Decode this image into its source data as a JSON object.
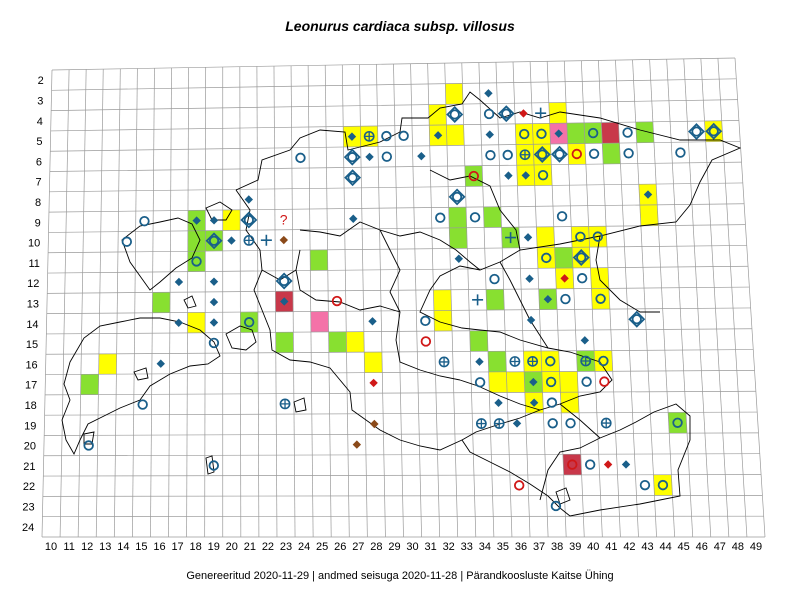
{
  "title": "Leonurus cardiaca subsp. villosus",
  "footer": {
    "generated": "Genereeritud 2020-11-29",
    "data_state": "andmed seisuga 2020-11-28",
    "org": "Pärandkoosluste Kaitse Ühing",
    "separator": "|"
  },
  "grid": {
    "rows": [
      "2",
      "3",
      "4",
      "5",
      "6",
      "7",
      "8",
      "9",
      "10",
      "11",
      "12",
      "13",
      "14",
      "15",
      "16",
      "17",
      "18",
      "19",
      "20",
      "21",
      "22",
      "23",
      "24"
    ],
    "cols": [
      "10",
      "11",
      "12",
      "13",
      "14",
      "15",
      "16",
      "17",
      "18",
      "19",
      "20",
      "21",
      "22",
      "23",
      "24",
      "25",
      "26",
      "27",
      "28",
      "29",
      "30",
      "31",
      "32",
      "33",
      "34",
      "35",
      "36",
      "37",
      "38",
      "39",
      "40",
      "41",
      "42",
      "43",
      "44",
      "45",
      "46",
      "47",
      "48",
      "49"
    ]
  },
  "colors": {
    "yellow": "#ffff00",
    "green": "#88e030",
    "red": "#c8384a",
    "pink": "#f472a8",
    "blue": "#1a5f8a",
    "red_mark": "#d01818",
    "brown": "#8b4a1a",
    "grid": "#9a9a9a",
    "border": "#000000"
  },
  "cells": [
    {
      "c": "33",
      "r": "3",
      "f": "yellow"
    },
    {
      "c": "32",
      "r": "4",
      "f": "yellow"
    },
    {
      "c": "39",
      "r": "4",
      "f": "yellow"
    },
    {
      "c": "27",
      "r": "5",
      "f": "yellow"
    },
    {
      "c": "28",
      "r": "5",
      "f": "yellow"
    },
    {
      "c": "32",
      "r": "5",
      "f": "yellow"
    },
    {
      "c": "33",
      "r": "5",
      "f": "yellow"
    },
    {
      "c": "37",
      "r": "5",
      "f": "yellow"
    },
    {
      "c": "38",
      "r": "5",
      "f": "yellow"
    },
    {
      "c": "39",
      "r": "5",
      "f": "pink"
    },
    {
      "c": "40",
      "r": "5",
      "f": "green"
    },
    {
      "c": "41",
      "r": "5",
      "f": "green"
    },
    {
      "c": "42",
      "r": "5",
      "f": "red"
    },
    {
      "c": "44",
      "r": "5",
      "f": "green"
    },
    {
      "c": "48",
      "r": "5",
      "f": "yellow"
    },
    {
      "c": "37",
      "r": "6",
      "f": "yellow"
    },
    {
      "c": "38",
      "r": "6",
      "f": "yellow"
    },
    {
      "c": "40",
      "r": "6",
      "f": "yellow"
    },
    {
      "c": "42",
      "r": "6",
      "f": "green"
    },
    {
      "c": "34",
      "r": "7",
      "f": "green"
    },
    {
      "c": "37",
      "r": "7",
      "f": "yellow"
    },
    {
      "c": "38",
      "r": "7",
      "f": "yellow"
    },
    {
      "c": "44",
      "r": "8",
      "f": "yellow"
    },
    {
      "c": "44",
      "r": "9",
      "f": "yellow"
    },
    {
      "c": "18",
      "r": "9",
      "f": "green"
    },
    {
      "c": "20",
      "r": "9",
      "f": "yellow"
    },
    {
      "c": "33",
      "r": "9",
      "f": "green"
    },
    {
      "c": "35",
      "r": "9",
      "f": "green"
    },
    {
      "c": "18",
      "r": "10",
      "f": "green"
    },
    {
      "c": "19",
      "r": "10",
      "f": "green"
    },
    {
      "c": "33",
      "r": "10",
      "f": "green"
    },
    {
      "c": "36",
      "r": "10",
      "f": "green"
    },
    {
      "c": "38",
      "r": "10",
      "f": "yellow"
    },
    {
      "c": "40",
      "r": "10",
      "f": "yellow"
    },
    {
      "c": "41",
      "r": "10",
      "f": "yellow"
    },
    {
      "c": "18",
      "r": "11",
      "f": "green"
    },
    {
      "c": "25",
      "r": "11",
      "f": "green"
    },
    {
      "c": "38",
      "r": "11",
      "f": "yellow"
    },
    {
      "c": "39",
      "r": "11",
      "f": "green"
    },
    {
      "c": "40",
      "r": "11",
      "f": "yellow"
    },
    {
      "c": "39",
      "r": "12",
      "f": "yellow"
    },
    {
      "c": "41",
      "r": "12",
      "f": "yellow"
    },
    {
      "c": "16",
      "r": "13",
      "f": "green"
    },
    {
      "c": "23",
      "r": "13",
      "f": "red"
    },
    {
      "c": "32",
      "r": "13",
      "f": "yellow"
    },
    {
      "c": "35",
      "r": "13",
      "f": "green"
    },
    {
      "c": "38",
      "r": "13",
      "f": "green"
    },
    {
      "c": "41",
      "r": "13",
      "f": "yellow"
    },
    {
      "c": "18",
      "r": "14",
      "f": "yellow"
    },
    {
      "c": "21",
      "r": "14",
      "f": "green"
    },
    {
      "c": "25",
      "r": "14",
      "f": "pink"
    },
    {
      "c": "32",
      "r": "14",
      "f": "yellow"
    },
    {
      "c": "23",
      "r": "15",
      "f": "green"
    },
    {
      "c": "26",
      "r": "15",
      "f": "green"
    },
    {
      "c": "27",
      "r": "15",
      "f": "yellow"
    },
    {
      "c": "34",
      "r": "15",
      "f": "green"
    },
    {
      "c": "13",
      "r": "16",
      "f": "yellow"
    },
    {
      "c": "28",
      "r": "16",
      "f": "yellow"
    },
    {
      "c": "35",
      "r": "16",
      "f": "green"
    },
    {
      "c": "37",
      "r": "16",
      "f": "yellow"
    },
    {
      "c": "38",
      "r": "16",
      "f": "yellow"
    },
    {
      "c": "40",
      "r": "16",
      "f": "green"
    },
    {
      "c": "41",
      "r": "16",
      "f": "yellow"
    },
    {
      "c": "12",
      "r": "17",
      "f": "green"
    },
    {
      "c": "35",
      "r": "17",
      "f": "yellow"
    },
    {
      "c": "36",
      "r": "17",
      "f": "yellow"
    },
    {
      "c": "37",
      "r": "17",
      "f": "green"
    },
    {
      "c": "38",
      "r": "17",
      "f": "yellow"
    },
    {
      "c": "39",
      "r": "17",
      "f": "yellow"
    },
    {
      "c": "37",
      "r": "18",
      "f": "yellow"
    },
    {
      "c": "39",
      "r": "18",
      "f": "yellow"
    },
    {
      "c": "45",
      "r": "19",
      "f": "green"
    },
    {
      "c": "39",
      "r": "21",
      "f": "red"
    },
    {
      "c": "44",
      "r": "22",
      "f": "yellow"
    }
  ],
  "marks": [
    {
      "c": "35",
      "r": "3",
      "t": "diamond"
    },
    {
      "c": "33",
      "r": "4",
      "t": "circle-diamond"
    },
    {
      "c": "35",
      "r": "4",
      "t": "circle"
    },
    {
      "c": "36",
      "r": "4",
      "t": "circle-diamond"
    },
    {
      "c": "37",
      "r": "4",
      "t": "red-diamond"
    },
    {
      "c": "38",
      "r": "4",
      "t": "plus"
    },
    {
      "c": "27",
      "r": "5",
      "t": "diamond"
    },
    {
      "c": "28",
      "r": "5",
      "t": "circle-cross"
    },
    {
      "c": "29",
      "r": "5",
      "t": "circle"
    },
    {
      "c": "30",
      "r": "5",
      "t": "circle"
    },
    {
      "c": "32",
      "r": "5",
      "t": "diamond"
    },
    {
      "c": "35",
      "r": "5",
      "t": "diamond"
    },
    {
      "c": "37",
      "r": "5",
      "t": "circle"
    },
    {
      "c": "38",
      "r": "5",
      "t": "circle"
    },
    {
      "c": "39",
      "r": "5",
      "t": "diamond"
    },
    {
      "c": "41",
      "r": "5",
      "t": "circle"
    },
    {
      "c": "43",
      "r": "5",
      "t": "circle"
    },
    {
      "c": "47",
      "r": "5",
      "t": "circle-diamond"
    },
    {
      "c": "48",
      "r": "5",
      "t": "circle-diamond"
    },
    {
      "c": "24",
      "r": "6",
      "t": "circle"
    },
    {
      "c": "27",
      "r": "6",
      "t": "circle-diamond"
    },
    {
      "c": "28",
      "r": "6",
      "t": "diamond"
    },
    {
      "c": "29",
      "r": "6",
      "t": "circle"
    },
    {
      "c": "31",
      "r": "6",
      "t": "diamond"
    },
    {
      "c": "35",
      "r": "6",
      "t": "circle"
    },
    {
      "c": "36",
      "r": "6",
      "t": "circle"
    },
    {
      "c": "37",
      "r": "6",
      "t": "circle-cross"
    },
    {
      "c": "38",
      "r": "6",
      "t": "circle-diamond"
    },
    {
      "c": "39",
      "r": "6",
      "t": "circle-diamond"
    },
    {
      "c": "40",
      "r": "6",
      "t": "red-circle"
    },
    {
      "c": "41",
      "r": "6",
      "t": "circle"
    },
    {
      "c": "43",
      "r": "6",
      "t": "circle"
    },
    {
      "c": "46",
      "r": "6",
      "t": "circle"
    },
    {
      "c": "27",
      "r": "7",
      "t": "circle-diamond"
    },
    {
      "c": "34",
      "r": "7",
      "t": "red-circle"
    },
    {
      "c": "36",
      "r": "7",
      "t": "diamond"
    },
    {
      "c": "37",
      "r": "7",
      "t": "diamond"
    },
    {
      "c": "38",
      "r": "7",
      "t": "circle"
    },
    {
      "c": "44",
      "r": "8",
      "t": "diamond"
    },
    {
      "c": "21",
      "r": "8",
      "t": "diamond"
    },
    {
      "c": "33",
      "r": "8",
      "t": "circle-diamond"
    },
    {
      "c": "15",
      "r": "9",
      "t": "circle"
    },
    {
      "c": "18",
      "r": "9",
      "t": "diamond"
    },
    {
      "c": "19",
      "r": "9",
      "t": "diamond"
    },
    {
      "c": "21",
      "r": "9",
      "t": "circle-diamond"
    },
    {
      "c": "23",
      "r": "9",
      "t": "question"
    },
    {
      "c": "27",
      "r": "9",
      "t": "diamond"
    },
    {
      "c": "32",
      "r": "9",
      "t": "circle"
    },
    {
      "c": "34",
      "r": "9",
      "t": "circle"
    },
    {
      "c": "39",
      "r": "9",
      "t": "circle"
    },
    {
      "c": "14",
      "r": "10",
      "t": "circle"
    },
    {
      "c": "19",
      "r": "10",
      "t": "circle-diamond"
    },
    {
      "c": "20",
      "r": "10",
      "t": "diamond"
    },
    {
      "c": "21",
      "r": "10",
      "t": "circle-cross"
    },
    {
      "c": "22",
      "r": "10",
      "t": "plus"
    },
    {
      "c": "23",
      "r": "10",
      "t": "brown-diamond"
    },
    {
      "c": "36",
      "r": "10",
      "t": "plus"
    },
    {
      "c": "37",
      "r": "10",
      "t": "diamond"
    },
    {
      "c": "40",
      "r": "10",
      "t": "circle"
    },
    {
      "c": "41",
      "r": "10",
      "t": "circle"
    },
    {
      "c": "18",
      "r": "11",
      "t": "circle"
    },
    {
      "c": "33",
      "r": "11",
      "t": "diamond"
    },
    {
      "c": "38",
      "r": "11",
      "t": "circle"
    },
    {
      "c": "40",
      "r": "11",
      "t": "circle-diamond"
    },
    {
      "c": "17",
      "r": "12",
      "t": "diamond"
    },
    {
      "c": "19",
      "r": "12",
      "t": "diamond"
    },
    {
      "c": "23",
      "r": "12",
      "t": "circle-diamond"
    },
    {
      "c": "35",
      "r": "12",
      "t": "circle"
    },
    {
      "c": "37",
      "r": "12",
      "t": "diamond"
    },
    {
      "c": "39",
      "r": "12",
      "t": "red-diamond"
    },
    {
      "c": "40",
      "r": "12",
      "t": "circle"
    },
    {
      "c": "19",
      "r": "13",
      "t": "diamond"
    },
    {
      "c": "23",
      "r": "13",
      "t": "diamond"
    },
    {
      "c": "26",
      "r": "13",
      "t": "red-circle"
    },
    {
      "c": "34",
      "r": "13",
      "t": "plus"
    },
    {
      "c": "38",
      "r": "13",
      "t": "diamond"
    },
    {
      "c": "39",
      "r": "13",
      "t": "circle"
    },
    {
      "c": "41",
      "r": "13",
      "t": "circle"
    },
    {
      "c": "17",
      "r": "14",
      "t": "diamond"
    },
    {
      "c": "19",
      "r": "14",
      "t": "diamond"
    },
    {
      "c": "21",
      "r": "14",
      "t": "circle"
    },
    {
      "c": "28",
      "r": "14",
      "t": "diamond"
    },
    {
      "c": "31",
      "r": "14",
      "t": "circle"
    },
    {
      "c": "37",
      "r": "14",
      "t": "diamond"
    },
    {
      "c": "43",
      "r": "14",
      "t": "circle-diamond"
    },
    {
      "c": "19",
      "r": "15",
      "t": "circle"
    },
    {
      "c": "31",
      "r": "15",
      "t": "red-circle"
    },
    {
      "c": "40",
      "r": "15",
      "t": "diamond"
    },
    {
      "c": "16",
      "r": "16",
      "t": "diamond"
    },
    {
      "c": "32",
      "r": "16",
      "t": "circle-cross"
    },
    {
      "c": "34",
      "r": "16",
      "t": "diamond"
    },
    {
      "c": "36",
      "r": "16",
      "t": "circle-cross"
    },
    {
      "c": "37",
      "r": "16",
      "t": "circle-cross"
    },
    {
      "c": "38",
      "r": "16",
      "t": "circle"
    },
    {
      "c": "40",
      "r": "16",
      "t": "circle-cross"
    },
    {
      "c": "41",
      "r": "16",
      "t": "circle"
    },
    {
      "c": "28",
      "r": "17",
      "t": "red-diamond"
    },
    {
      "c": "34",
      "r": "17",
      "t": "circle"
    },
    {
      "c": "37",
      "r": "17",
      "t": "diamond"
    },
    {
      "c": "38",
      "r": "17",
      "t": "circle"
    },
    {
      "c": "40",
      "r": "17",
      "t": "circle"
    },
    {
      "c": "41",
      "r": "17",
      "t": "red-circle"
    },
    {
      "c": "15",
      "r": "18",
      "t": "circle"
    },
    {
      "c": "23",
      "r": "18",
      "t": "circle-cross"
    },
    {
      "c": "35",
      "r": "18",
      "t": "diamond"
    },
    {
      "c": "37",
      "r": "18",
      "t": "diamond"
    },
    {
      "c": "38",
      "r": "18",
      "t": "circle"
    },
    {
      "c": "35",
      "r": "19",
      "t": "circle-cross"
    },
    {
      "c": "36",
      "r": "19",
      "t": "diamond"
    },
    {
      "c": "28",
      "r": "19",
      "t": "brown-diamond"
    },
    {
      "c": "34",
      "r": "19",
      "t": "circle-cross"
    },
    {
      "c": "38",
      "r": "19",
      "t": "circle"
    },
    {
      "c": "39",
      "r": "19",
      "t": "circle"
    },
    {
      "c": "41",
      "r": "19",
      "t": "circle-cross"
    },
    {
      "c": "45",
      "r": "19",
      "t": "circle"
    },
    {
      "c": "12",
      "r": "20",
      "t": "circle"
    },
    {
      "c": "27",
      "r": "20",
      "t": "brown-diamond"
    },
    {
      "c": "19",
      "r": "21",
      "t": "circle"
    },
    {
      "c": "39",
      "r": "21",
      "t": "red-circle"
    },
    {
      "c": "40",
      "r": "21",
      "t": "circle"
    },
    {
      "c": "41",
      "r": "21",
      "t": "red-diamond"
    },
    {
      "c": "42",
      "r": "21",
      "t": "diamond"
    },
    {
      "c": "43",
      "r": "22",
      "t": "circle"
    },
    {
      "c": "44",
      "r": "22",
      "t": "circle"
    },
    {
      "c": "36",
      "r": "22",
      "t": "red-circle"
    },
    {
      "c": "38",
      "r": "23",
      "t": "circle"
    }
  ]
}
